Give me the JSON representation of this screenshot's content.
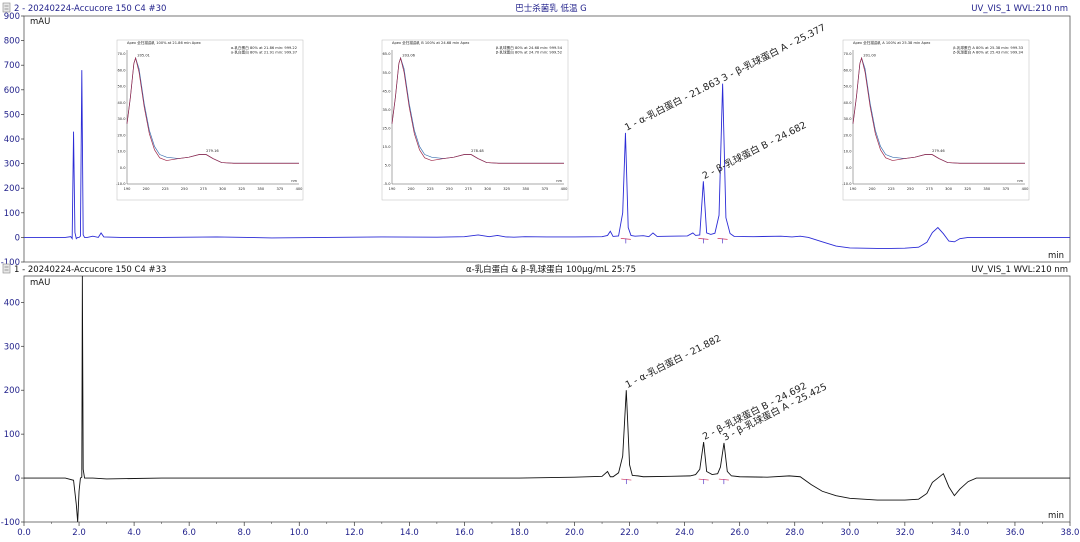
{
  "chart_data": [
    {
      "type": "line",
      "panel": "top",
      "header_left": "2 - 20240224-Accucore 150 C4 #30",
      "title": "巴士杀菌乳 低温 G",
      "header_right": "UV_VIS_1 WVL:210 nm",
      "ylabel": "mAU",
      "xlabel": "min",
      "xlim": [
        0,
        38
      ],
      "ylim": [
        -100,
        900
      ],
      "yticks": [
        -100,
        0,
        100,
        200,
        300,
        400,
        500,
        600,
        700,
        800,
        900
      ],
      "ytick_labels": [
        "-100",
        "0",
        "100",
        "200",
        "300",
        "400",
        "500",
        "600",
        "700",
        "800",
        "900"
      ],
      "line_color": "#2b2bd6",
      "series": [
        {
          "x": [
            0,
            1.5,
            1.7,
            1.75,
            1.8,
            1.85,
            1.9,
            1.95,
            2.0,
            2.05,
            2.1,
            2.15,
            2.2,
            2.3,
            2.5,
            2.7,
            2.8,
            2.9,
            3.5,
            5,
            7,
            9,
            11,
            13,
            15,
            16,
            16.5,
            16.9,
            17.2,
            17.5,
            17.8,
            18.2,
            19,
            20,
            21,
            21.2,
            21.3,
            21.4,
            21.6,
            21.75,
            21.85,
            21.95,
            22.05,
            22.2,
            22.5,
            22.7,
            22.85,
            23.0,
            23.5,
            24.1,
            24.3,
            24.4,
            24.55,
            24.68,
            24.8,
            24.95,
            25.1,
            25.25,
            25.38,
            25.5,
            25.65,
            25.8,
            26.5,
            27.5,
            27.9,
            28.2,
            28.5,
            29,
            29.5,
            30,
            30.5,
            31,
            31.5,
            32,
            32.5,
            32.8,
            33.0,
            33.2,
            33.4,
            33.6,
            33.8,
            34.0,
            34.3,
            34.6,
            35,
            36,
            37,
            38
          ],
          "y": [
            0,
            0,
            3,
            -5,
            430,
            20,
            -5,
            0,
            0,
            5,
            680,
            10,
            0,
            0,
            5,
            0,
            18,
            2,
            0,
            0,
            2,
            -2,
            0,
            2,
            1,
            3,
            10,
            3,
            8,
            2,
            1,
            3,
            2,
            2,
            3,
            8,
            25,
            4,
            6,
            100,
            425,
            40,
            8,
            5,
            7,
            3,
            18,
            4,
            5,
            6,
            18,
            8,
            10,
            228,
            18,
            12,
            17,
            90,
            625,
            80,
            16,
            4,
            3,
            5,
            2,
            5,
            0,
            -18,
            -35,
            -43,
            -44,
            -45,
            -45,
            -44,
            -40,
            -20,
            20,
            40,
            15,
            -15,
            -18,
            -5,
            0,
            0,
            0,
            0,
            0,
            0
          ]
        }
      ],
      "peaks": [
        {
          "label": "1 - α-乳白蛋白 - 21.863",
          "x": 21.863,
          "y": 425
        },
        {
          "label": "2 - β-乳球蛋白 B - 24.682",
          "x": 24.682,
          "y": 228
        },
        {
          "label": "3 - β-乳球蛋白 A - 25.377",
          "x": 25.377,
          "y": 625
        }
      ]
    },
    {
      "type": "line",
      "panel": "bottom",
      "header_left": "1 - 20240224-Accucore 150 C4 #33",
      "title": "α-乳白蛋白 & β-乳球蛋白 100μg/mL 25:75",
      "header_right": "UV_VIS_1 WVL:210 nm",
      "ylabel": "mAU",
      "xlabel": "min",
      "xlim": [
        0,
        38
      ],
      "ylim": [
        -100,
        460
      ],
      "yticks": [
        -100,
        0,
        100,
        200,
        300,
        400
      ],
      "ytick_labels": [
        "-100",
        "0",
        "100",
        "200",
        "300",
        "400"
      ],
      "xticks": [
        0,
        2,
        4,
        6,
        8,
        10,
        12,
        14,
        16,
        18,
        20,
        22,
        24,
        26,
        28,
        30,
        32,
        34,
        36,
        38
      ],
      "xtick_labels": [
        "0.0",
        "2.0",
        "4.0",
        "6.0",
        "8.0",
        "10.0",
        "12.0",
        "14.0",
        "16.0",
        "18.0",
        "20.0",
        "22.0",
        "24.0",
        "26.0",
        "28.0",
        "30.0",
        "32.0",
        "34.0",
        "36.0",
        "38.0"
      ],
      "line_color": "#111111",
      "series": [
        {
          "x": [
            0,
            1.5,
            1.8,
            1.9,
            1.95,
            2.0,
            2.05,
            2.1,
            2.12,
            2.15,
            2.2,
            2.3,
            2.5,
            3,
            5,
            10,
            15,
            18,
            20,
            21.0,
            21.2,
            21.3,
            21.4,
            21.6,
            21.75,
            21.88,
            22.0,
            22.1,
            22.3,
            22.5,
            23.5,
            24.2,
            24.4,
            24.55,
            24.69,
            24.8,
            25.0,
            25.2,
            25.3,
            25.43,
            25.55,
            25.7,
            26,
            27,
            27.8,
            28.2,
            28.6,
            29,
            29.5,
            30,
            30.5,
            31,
            31.5,
            32,
            32.5,
            32.8,
            33.0,
            33.2,
            33.4,
            33.6,
            33.8,
            34.0,
            34.3,
            34.6,
            35,
            36,
            37,
            38
          ],
          "y": [
            0,
            0,
            -5,
            -60,
            -110,
            -30,
            0,
            2,
            470,
            20,
            0,
            0,
            0,
            -2,
            0,
            0,
            0,
            0,
            2,
            4,
            15,
            3,
            3,
            12,
            50,
            200,
            30,
            6,
            5,
            3,
            4,
            5,
            8,
            20,
            82,
            15,
            8,
            10,
            25,
            80,
            15,
            5,
            3,
            2,
            5,
            3,
            -15,
            -30,
            -40,
            -46,
            -48,
            -50,
            -50,
            -50,
            -48,
            -35,
            -10,
            0,
            10,
            -20,
            -40,
            -25,
            -8,
            0,
            0,
            0,
            0,
            0
          ]
        }
      ],
      "peaks": [
        {
          "label": "1 - α-乳白蛋白 - 21.882",
          "x": 21.882,
          "y": 200
        },
        {
          "label": "2 - β-乳球蛋白 B - 24.692",
          "x": 24.692,
          "y": 82
        },
        {
          "label": "3 - β-乳球蛋白 A - 25.425",
          "x": 25.425,
          "y": 80
        }
      ]
    }
  ],
  "insets": [
    {
      "header": "Apex 全扫描曲乳 100% at 21.86 min     Apex",
      "legend": [
        "α-乳白蛋白 80% at 21.86 min: 999.22",
        "α-乳白蛋白 80% at 21.91 min: 999.37"
      ],
      "apex_label": "205.01",
      "minor_label": "279.16",
      "xtick_labels": [
        "190",
        "200",
        "225",
        "250",
        "275",
        "300",
        "325",
        "350",
        "375",
        "400"
      ],
      "ytick_labels": [
        "70.0",
        "60.0",
        "50.0",
        "40.0",
        "30.0",
        "20.0",
        "10.0",
        "0.0",
        "-10.0"
      ],
      "xunit": "nm"
    },
    {
      "header": "Apex 全扫描曲乳 B 100% at 24.68 min     Apex",
      "legend": [
        "β-乳球蛋白 80% at 24.68 min: 999.54",
        "β-乳球蛋白 80% at 24.70 min: 999.52"
      ],
      "apex_label": "203.06",
      "minor_label": "278.48",
      "xtick_labels": [
        "190",
        "200",
        "225",
        "250",
        "275",
        "300",
        "325",
        "350",
        "375",
        "400"
      ],
      "ytick_labels": [
        "65.0",
        "55.0",
        "45.0",
        "35.0",
        "25.0",
        "15.0",
        "5.0",
        "-5.0"
      ],
      "xunit": "nm"
    },
    {
      "header": "Apex 全扫描曲乳 A 100% at 25.38 min     Apex",
      "legend": [
        "β-乳球蛋白 A 80% at 25.38 min: 999.33",
        "β-乳球蛋白 A 80% at 25.43 min: 999.34"
      ],
      "apex_label": "201.00",
      "minor_label": "279.46",
      "xtick_labels": [
        "190",
        "200",
        "225",
        "250",
        "275",
        "300",
        "325",
        "350",
        "375",
        "400"
      ],
      "ytick_labels": [
        "70.0",
        "60.0",
        "50.0",
        "40.0",
        "30.0",
        "20.0",
        "10.0",
        "0.0",
        "-10.0"
      ],
      "xunit": "nm"
    }
  ]
}
